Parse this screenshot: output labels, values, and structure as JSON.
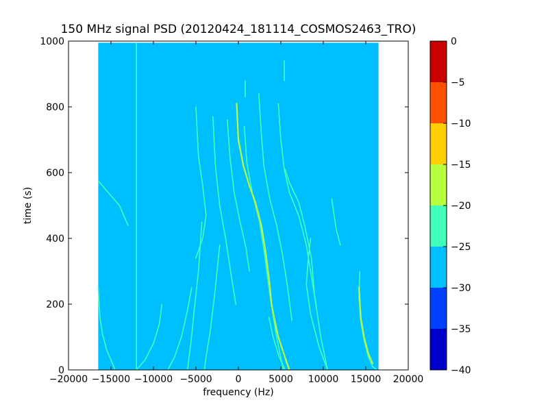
{
  "chart_data": {
    "type": "heatmap",
    "title": "150 MHz signal PSD (20120424_181114_COSMOS2463_TRO)",
    "xlabel": "frequency (Hz)",
    "ylabel": "time (s)",
    "xlim": [
      -20000,
      20000
    ],
    "ylim": [
      0,
      1000
    ],
    "x_ticks": [
      -20000,
      -15000,
      -10000,
      -5000,
      0,
      5000,
      10000,
      15000,
      20000
    ],
    "x_tick_labels": [
      "−20000",
      "−15000",
      "−10000",
      "−5000",
      "0",
      "5000",
      "10000",
      "15000",
      "20000"
    ],
    "y_ticks": [
      0,
      200,
      400,
      600,
      800,
      1000
    ],
    "y_tick_labels": [
      "0",
      "200",
      "400",
      "600",
      "800",
      "1000"
    ],
    "data_extent": {
      "freq_min": -16500,
      "freq_max": 16500,
      "time_min": 0,
      "time_max": 995
    },
    "background_level": -27.5,
    "colorbar": {
      "levels": [
        -40,
        -35,
        -30,
        -25,
        -20,
        -15,
        -10,
        -5,
        0
      ],
      "tick_labels": [
        "−40",
        "−35",
        "−30",
        "−25",
        "−20",
        "−15",
        "−10",
        "−5",
        "0"
      ],
      "colors": [
        "#0000cd",
        "#0040ff",
        "#00bfff",
        "#40ffb8",
        "#b8ff40",
        "#ffd000",
        "#ff5000",
        "#c80000"
      ]
    },
    "series": [
      {
        "level": -22.5,
        "points": [
          [
            -12000,
            0
          ],
          [
            -12000,
            995
          ]
        ]
      },
      {
        "level": -22.5,
        "points": [
          [
            -16500,
            250
          ],
          [
            -16300,
            160
          ],
          [
            -16000,
            110
          ],
          [
            -15500,
            60
          ],
          [
            -15000,
            30
          ],
          [
            -14500,
            0
          ]
        ]
      },
      {
        "level": -22.5,
        "points": [
          [
            -13000,
            440
          ],
          [
            -14000,
            500
          ],
          [
            -15500,
            545
          ],
          [
            -16500,
            575
          ]
        ]
      },
      {
        "level": -22.5,
        "points": [
          [
            -9000,
            200
          ],
          [
            -9300,
            140
          ],
          [
            -10000,
            80
          ],
          [
            -11000,
            30
          ],
          [
            -12000,
            0
          ]
        ]
      },
      {
        "level": -22.5,
        "points": [
          [
            -5500,
            250
          ],
          [
            -6000,
            180
          ],
          [
            -6700,
            100
          ],
          [
            -7500,
            40
          ],
          [
            -8300,
            0
          ]
        ]
      },
      {
        "level": -22.5,
        "points": [
          [
            -5000,
            800
          ],
          [
            -4700,
            650
          ],
          [
            -4200,
            560
          ],
          [
            -3800,
            470
          ],
          [
            -4200,
            400
          ],
          [
            -5000,
            340
          ]
        ]
      },
      {
        "level": -22.5,
        "points": [
          [
            -4300,
            450
          ],
          [
            -4700,
            300
          ],
          [
            -5200,
            180
          ],
          [
            -5600,
            80
          ],
          [
            -6000,
            0
          ]
        ]
      },
      {
        "level": -22.5,
        "points": [
          [
            -3000,
            770
          ],
          [
            -2700,
            620
          ],
          [
            -2200,
            500
          ],
          [
            -1500,
            400
          ],
          [
            -800,
            280
          ],
          [
            -300,
            200
          ]
        ]
      },
      {
        "level": -22.5,
        "points": [
          [
            -1300,
            760
          ],
          [
            -1000,
            650
          ],
          [
            -500,
            540
          ],
          [
            200,
            450
          ],
          [
            900,
            370
          ],
          [
            1300,
            300
          ]
        ]
      },
      {
        "level": -22.5,
        "points": [
          [
            -2200,
            380
          ],
          [
            -2700,
            250
          ],
          [
            -3300,
            120
          ],
          [
            -3800,
            40
          ],
          [
            -4000,
            0
          ]
        ]
      },
      {
        "level": -22.5,
        "points": [
          [
            700,
            740
          ],
          [
            1000,
            630
          ],
          [
            1700,
            530
          ],
          [
            2500,
            450
          ],
          [
            3100,
            350
          ],
          [
            3700,
            230
          ],
          [
            4500,
            100
          ],
          [
            5300,
            0
          ]
        ]
      },
      {
        "level": -22.5,
        "points": [
          [
            2400,
            840
          ],
          [
            2700,
            720
          ],
          [
            3000,
            620
          ],
          [
            3700,
            520
          ],
          [
            4500,
            440
          ],
          [
            5200,
            350
          ],
          [
            5800,
            250
          ],
          [
            6300,
            150
          ]
        ]
      },
      {
        "level": -22.5,
        "points": [
          [
            4700,
            810
          ],
          [
            5000,
            700
          ],
          [
            5400,
            610
          ],
          [
            6000,
            540
          ],
          [
            7100,
            470
          ],
          [
            8000,
            380
          ],
          [
            8500,
            300
          ],
          [
            9200,
            190
          ]
        ]
      },
      {
        "level": -22.5,
        "points": [
          [
            5500,
            610
          ],
          [
            6000,
            570
          ],
          [
            7100,
            510
          ],
          [
            7800,
            440
          ],
          [
            8600,
            340
          ],
          [
            9000,
            220
          ],
          [
            9700,
            100
          ],
          [
            10500,
            0
          ]
        ]
      },
      {
        "level": -22.5,
        "points": [
          [
            8500,
            400
          ],
          [
            8200,
            330
          ],
          [
            8000,
            260
          ],
          [
            8500,
            170
          ],
          [
            9500,
            70
          ],
          [
            10500,
            0
          ]
        ]
      },
      {
        "level": -22.5,
        "points": [
          [
            11000,
            520
          ],
          [
            11500,
            430
          ],
          [
            12000,
            380
          ]
        ]
      },
      {
        "level": -22.5,
        "points": [
          [
            3600,
            160
          ],
          [
            4100,
            100
          ],
          [
            4800,
            40
          ],
          [
            5500,
            0
          ]
        ]
      },
      {
        "level": -22.5,
        "points": [
          [
            800,
            880
          ],
          [
            800,
            830
          ]
        ]
      },
      {
        "level": -22.5,
        "points": [
          [
            5400,
            940
          ],
          [
            5400,
            880
          ]
        ]
      },
      {
        "level": -22.5,
        "points": [
          [
            14300,
            300
          ],
          [
            14200,
            220
          ],
          [
            14400,
            150
          ],
          [
            14800,
            90
          ],
          [
            15300,
            40
          ],
          [
            15800,
            10
          ],
          [
            16300,
            0
          ]
        ]
      },
      {
        "level": -17.5,
        "points": [
          [
            -200,
            810
          ],
          [
            0,
            700
          ],
          [
            600,
            620
          ],
          [
            1300,
            560
          ],
          [
            2000,
            510
          ],
          [
            2700,
            440
          ],
          [
            3200,
            360
          ],
          [
            3600,
            280
          ],
          [
            3900,
            200
          ],
          [
            4200,
            160
          ],
          [
            4700,
            100
          ],
          [
            5600,
            30
          ],
          [
            6000,
            0
          ]
        ]
      },
      {
        "level": -17.5,
        "points": [
          [
            14200,
            250
          ],
          [
            14400,
            160
          ],
          [
            14800,
            100
          ],
          [
            15300,
            50
          ],
          [
            15800,
            20
          ]
        ]
      }
    ]
  }
}
